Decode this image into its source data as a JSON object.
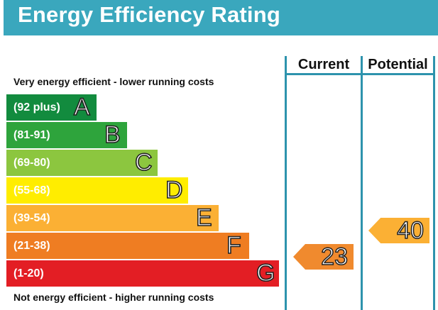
{
  "header": {
    "title": "Energy Efficiency Rating"
  },
  "columns": {
    "current": "Current",
    "potential": "Potential"
  },
  "captions": {
    "top": "Very energy efficient - lower running costs",
    "bottom": "Not energy efficient - higher running costs"
  },
  "bands": [
    {
      "letter": "A",
      "range": "(92 plus)",
      "color": "#128b3e"
    },
    {
      "letter": "B",
      "range": "(81-91)",
      "color": "#2ea43c"
    },
    {
      "letter": "C",
      "range": "(69-80)",
      "color": "#8cc63f"
    },
    {
      "letter": "D",
      "range": "(55-68)",
      "color": "#ffed00"
    },
    {
      "letter": "E",
      "range": "(39-54)",
      "color": "#fbb034"
    },
    {
      "letter": "F",
      "range": "(21-38)",
      "color": "#ef7d22"
    },
    {
      "letter": "G",
      "range": "(1-20)",
      "color": "#e31e24"
    }
  ],
  "ratings": {
    "current": {
      "value": "23",
      "band": "F",
      "color": "#f08a2e"
    },
    "potential": {
      "value": "40",
      "band": "E",
      "color": "#fbb034"
    }
  }
}
